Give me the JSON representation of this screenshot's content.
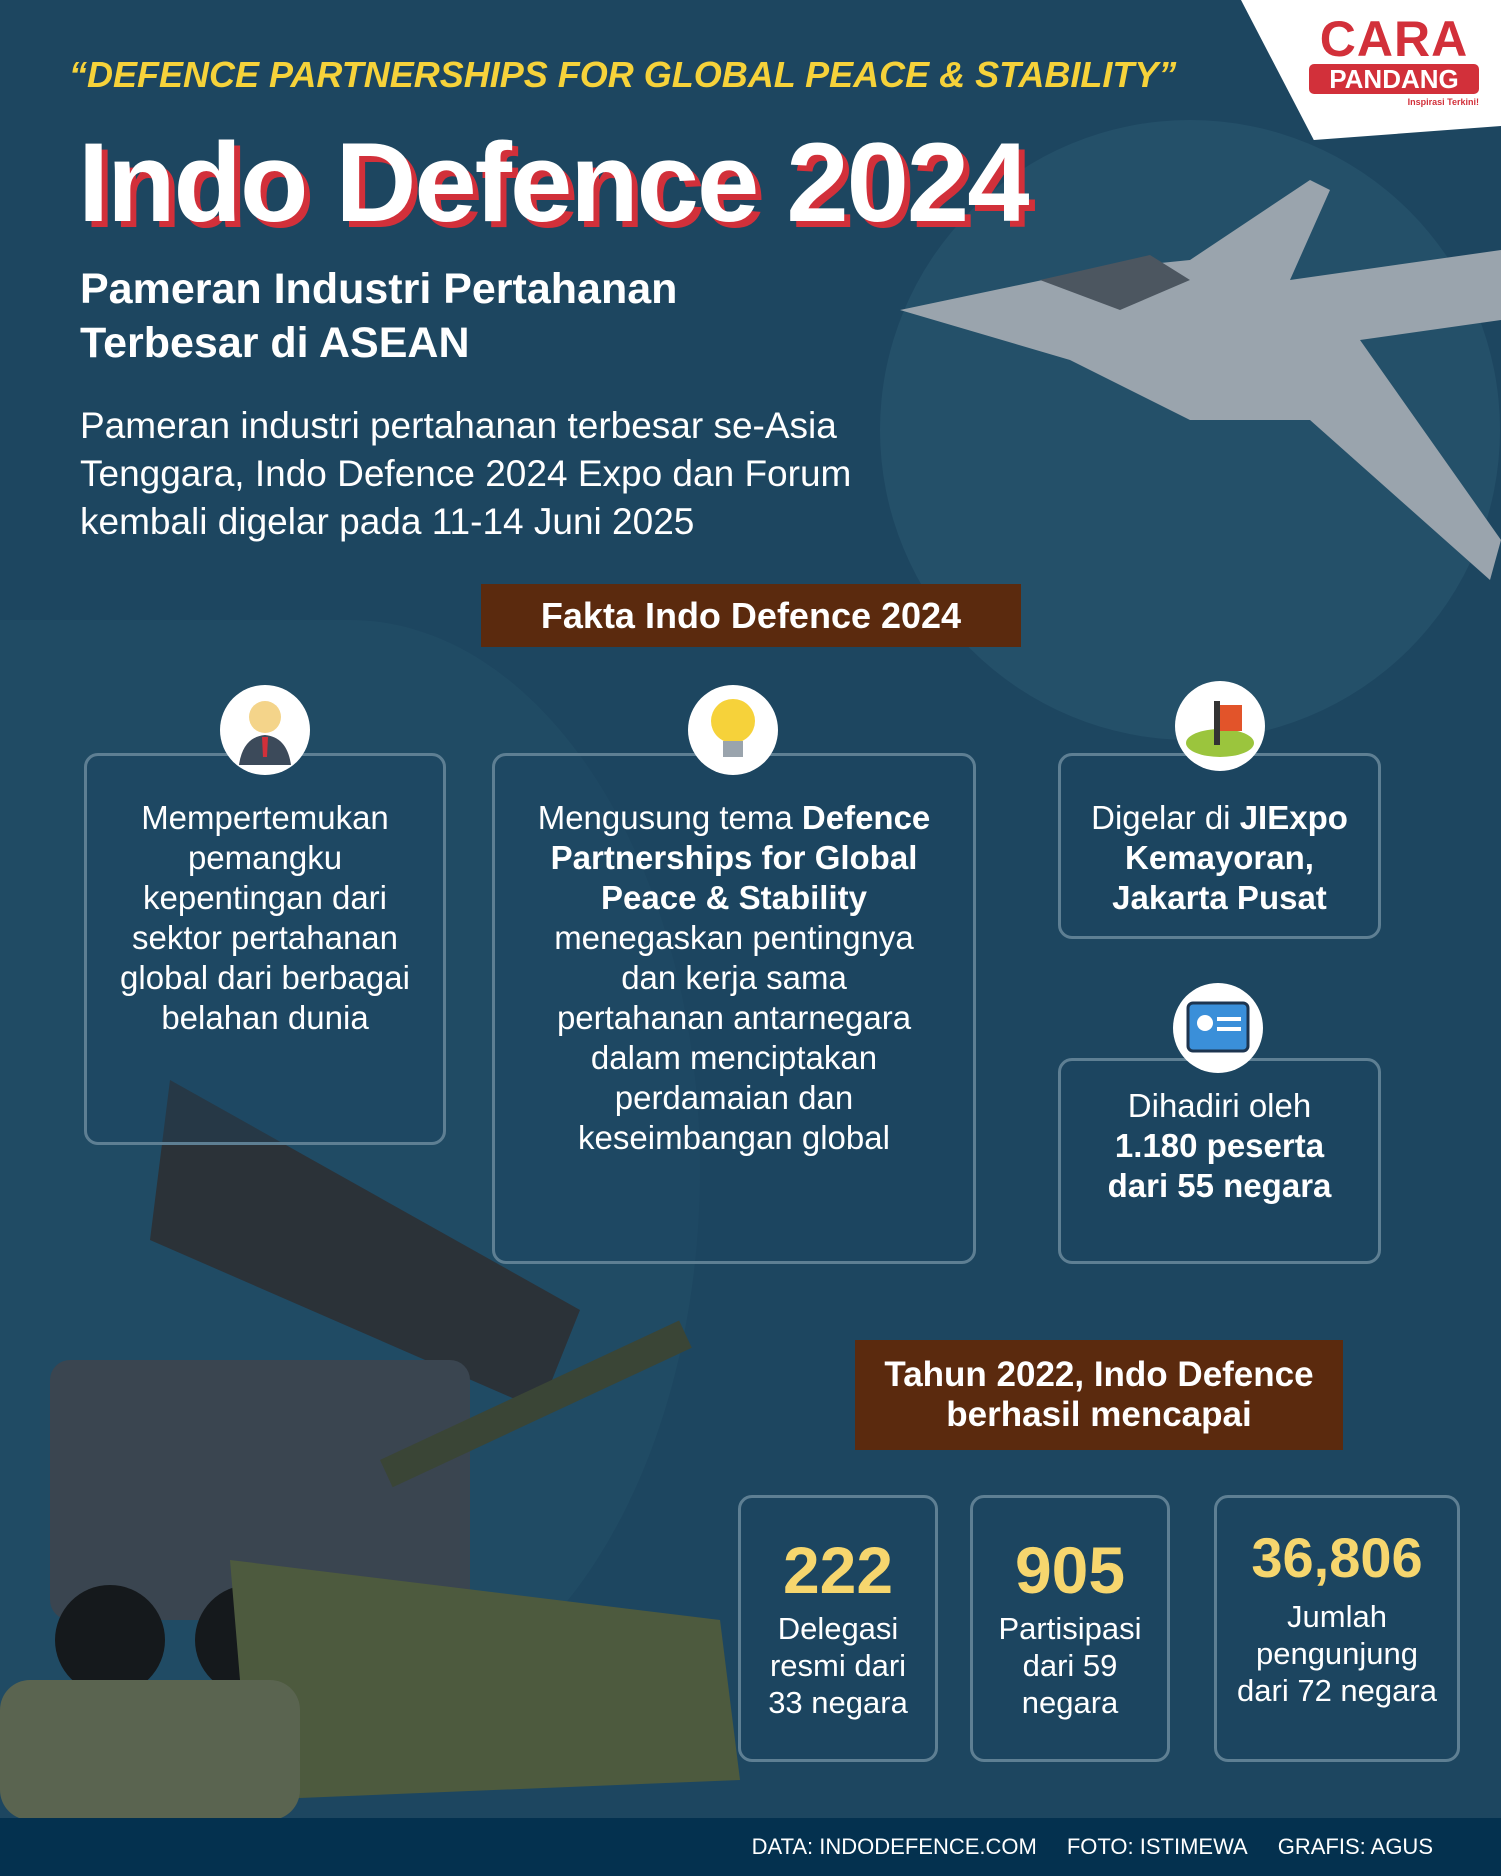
{
  "logo": {
    "line1": "CARA",
    "line2": "PANDANG",
    "slogan": "Inspirasi Terkini!"
  },
  "header": {
    "tagline": "“DEFENCE PARTNERSHIPS FOR GLOBAL PEACE & STABILITY”",
    "title": "Indo Defence 2024",
    "subtitle_1": "Pameran Industri Pertahanan",
    "subtitle_2": "Terbesar di ASEAN",
    "intro": "Pameran industri pertahanan terbesar se-Asia Tenggara, Indo Defence 2024 Expo dan Forum kembali digelar pada 11-14 Juni 2025"
  },
  "facts": {
    "heading": "Fakta Indo Defence 2024",
    "card1": "Mempertemukan pemangku kepentingan dari sektor pertahanan global dari berbagai belahan dunia",
    "card2": {
      "pre": "Mengusung tema ",
      "bold": "Defence Partnerships for Global Peace & Stability",
      "post": " menegaskan pentingnya dan kerja sama pertahanan antarnegara dalam menciptakan perdamaian dan keseimbangan global"
    },
    "card3": {
      "pre": "Digelar di ",
      "bold": "JIExpo Kemayoran, Jakarta Pusat"
    },
    "card4": {
      "pre": "Dihadiri oleh ",
      "bold": "1.180 peserta dari 55 negara"
    }
  },
  "stats": {
    "heading": "Tahun 2022, Indo Defence berhasil mencapai",
    "items": [
      {
        "number": "222",
        "label": "Delegasi resmi dari 33 negara"
      },
      {
        "number": "905",
        "label": "Partisipasi dari 59 negara"
      },
      {
        "number": "36,806",
        "label": "Jumlah pengunjung dari 72 negara"
      }
    ]
  },
  "footer": {
    "data": "DATA: INDODEFENCE.COM",
    "foto": "FOTO: ISTIMEWA",
    "grafis": "GRAFIS: AGUS"
  },
  "colors": {
    "background": "#1d4660",
    "accent_yellow": "#f6d23a",
    "brand_red": "#d2303a",
    "box_brown": "#5b2a0e"
  }
}
